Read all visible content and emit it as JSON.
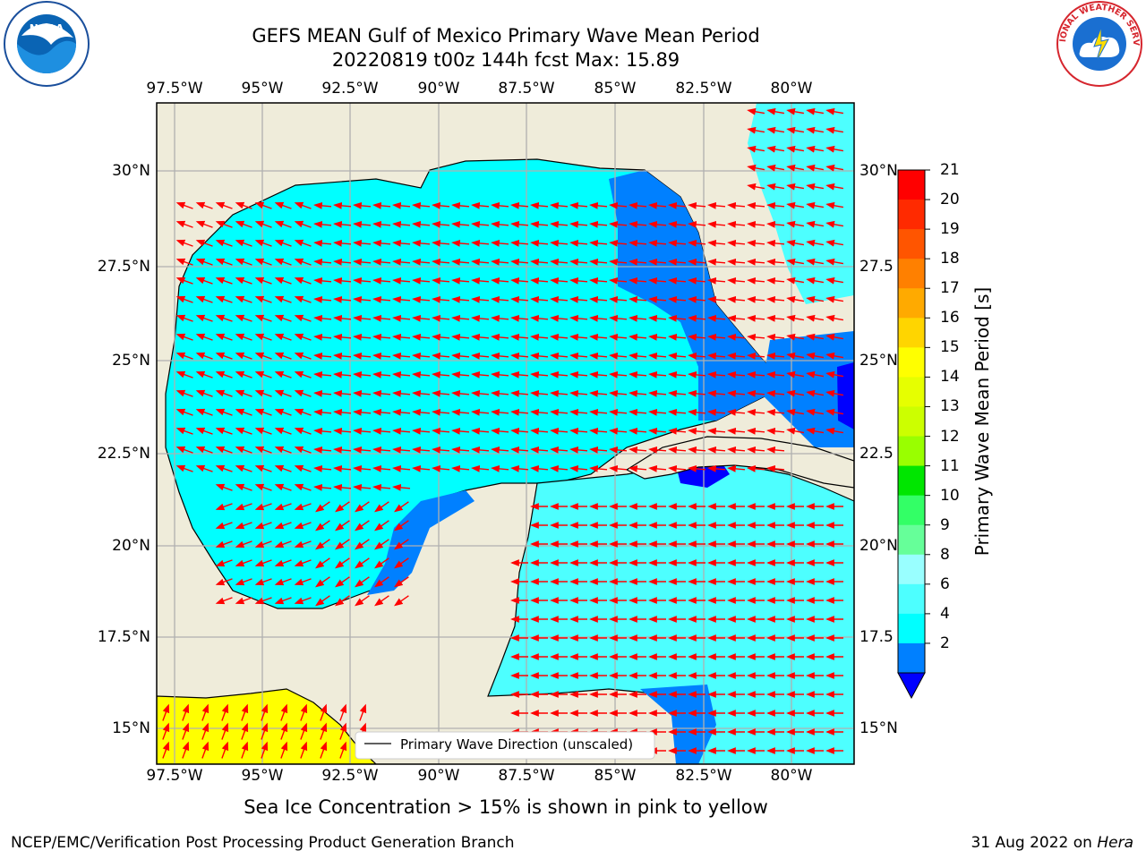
{
  "title_line1": "GEFS MEAN Gulf of Mexico Primary Wave Mean Period",
  "title_line2": "20220819 t00z 144h fcst   Max: 15.89",
  "lon_ticks": [
    "97.5°W",
    "95°W",
    "92.5°W",
    "90°W",
    "87.5°W",
    "85°W",
    "82.5°W",
    "80°W"
  ],
  "lat_ticks": [
    "30°N",
    "27.5°N",
    "25°N",
    "22.5°N",
    "20°N",
    "17.5°N",
    "15°N"
  ],
  "lat_ticks_right": [
    "30°N",
    "27.5",
    "25°N",
    "22.5",
    "20°N",
    "17.5",
    "15°N"
  ],
  "colorbar": {
    "title": "Primary Wave Mean Period [s]",
    "tick_labels": [
      "21",
      "20",
      "19",
      "18",
      "17",
      "16",
      "15",
      "14",
      "13",
      "12",
      "11",
      "10",
      "9",
      "8",
      "6",
      "4",
      "2"
    ],
    "colors": [
      "#ff0000",
      "#ff2a00",
      "#ff5500",
      "#ff8000",
      "#ffaa00",
      "#ffd500",
      "#ffff00",
      "#e6ff00",
      "#ccff00",
      "#99ff00",
      "#00e600",
      "#33ff66",
      "#66ff99",
      "#99ffff",
      "#4dffff",
      "#00ffff",
      "#0080ff"
    ],
    "extend_color": "#0000ff"
  },
  "legend": {
    "label": "Primary Wave Direction (unscaled)"
  },
  "note": "Sea Ice Concentration > 15% is shown in pink to yellow",
  "footer_left": "NCEP/EMC/Verification Post Processing Product Generation Branch",
  "footer_date": "31 Aug 2022 on",
  "footer_host": "Hera",
  "logos": {
    "left": "NOAA",
    "right": "NATIONAL WEATHER SERVICE"
  },
  "colors": {
    "land": "#efecda",
    "sea_main": "#00ffff",
    "sea_light": "#4dffff",
    "sea_deep": "#0080ff",
    "arrow": "#ff0000"
  }
}
